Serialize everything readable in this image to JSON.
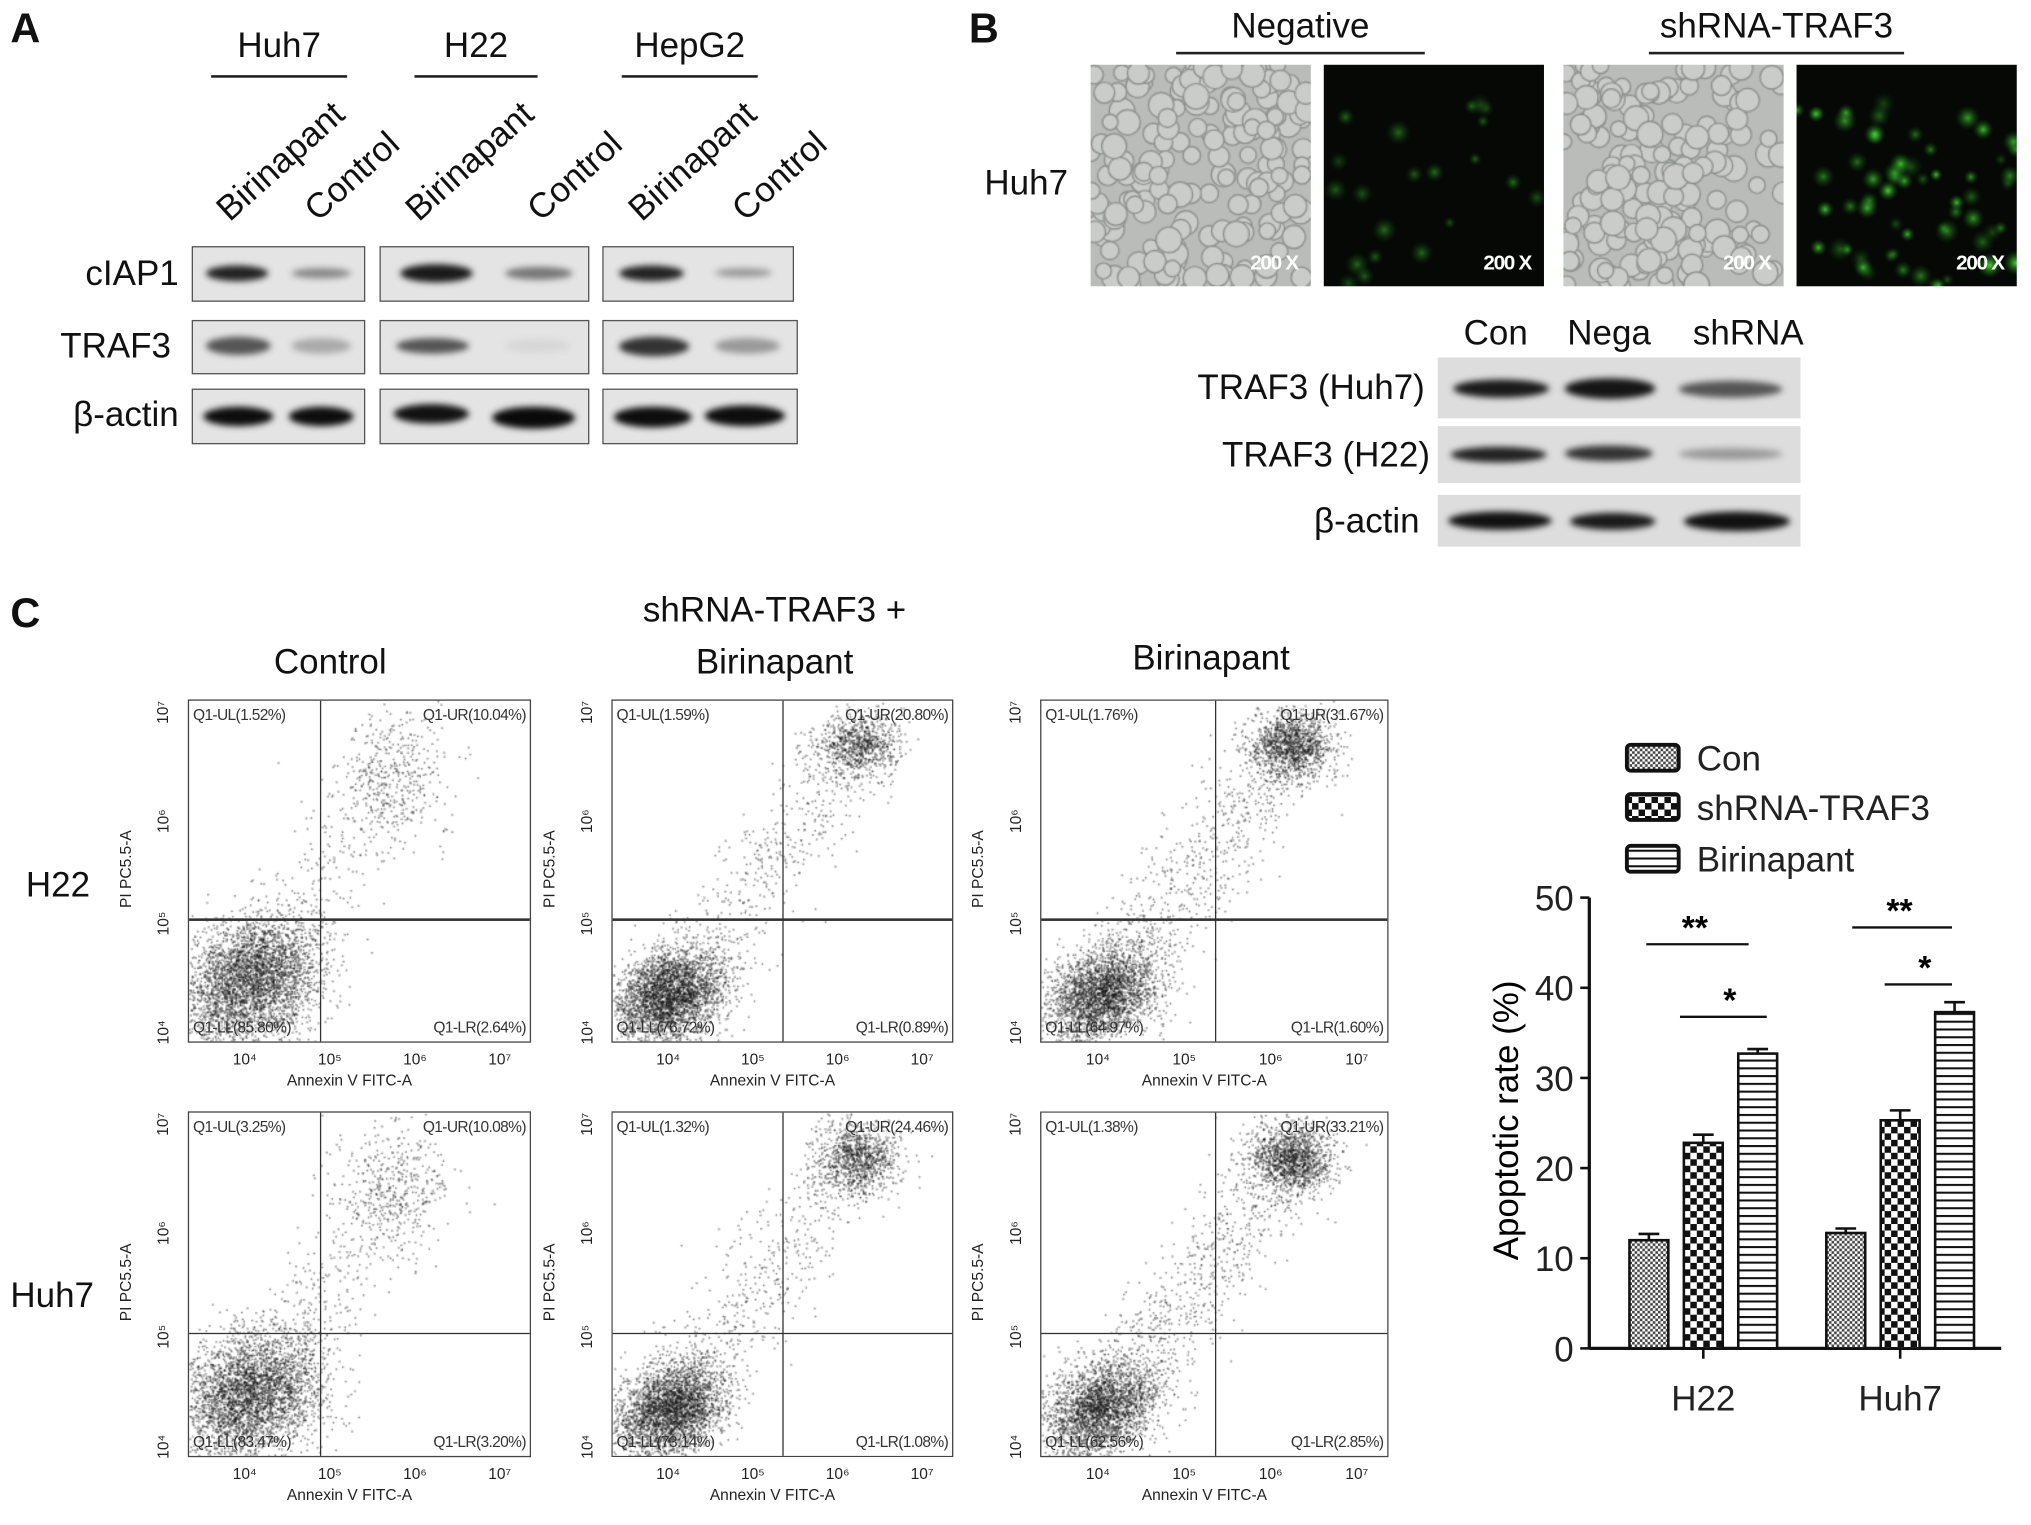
{
  "panel_a": {
    "letter": "A",
    "cell_lines": [
      "Huh7",
      "H22",
      "HepG2"
    ],
    "lanes": [
      "Birinapant",
      "Control",
      "Birinapant",
      "Control",
      "Birinapant",
      "Control"
    ],
    "rows": [
      "cIAP1",
      "TRAF3",
      "β-actin"
    ]
  },
  "panel_b": {
    "letter": "B",
    "groups": [
      "Negative",
      "shRNA-TRAF3"
    ],
    "row_label": "Huh7",
    "magnification": "200 X",
    "blot_lanes": [
      "Con",
      "Nega",
      "shRNA"
    ],
    "blot_rows": [
      "TRAF3 (Huh7)",
      "TRAF3 (H22)",
      "β-actin"
    ]
  },
  "panel_c": {
    "letter": "C",
    "columns": [
      {
        "line1": "Control",
        "line2": ""
      },
      {
        "line1": "shRNA-TRAF3 +",
        "line2": "Birinapant"
      },
      {
        "line1": "Birinapant",
        "line2": ""
      }
    ],
    "rows": [
      "H22",
      "Huh7"
    ],
    "x_axis_label": "Annexin V FITC-A",
    "y_axis_label": "PI PC5.5-A",
    "x_ticks": [
      "10⁴",
      "10⁵",
      "10⁶",
      "10⁷"
    ],
    "y_ticks": [
      "10⁴",
      "10⁵",
      "10⁶",
      "10⁷"
    ],
    "flow_plots": [
      [
        {
          "UL": "Q1-UL(1.52%)",
          "UR": "Q1-UR(10.04%)",
          "LL": "Q1-LL(85.80%)",
          "LR": "Q1-LR(2.64%)"
        },
        {
          "UL": "Q1-UL(1.59%)",
          "UR": "Q1-UR(20.80%)",
          "LL": "Q1-LL(76.72%)",
          "LR": "Q1-LR(0.89%)"
        },
        {
          "UL": "Q1-UL(1.76%)",
          "UR": "Q1-UR(31.67%)",
          "LL": "Q1-LL(64.97%)",
          "LR": "Q1-LR(1.60%)"
        }
      ],
      [
        {
          "UL": "Q1-UL(3.25%)",
          "UR": "Q1-UR(10.08%)",
          "LL": "Q1-LL(83.47%)",
          "LR": "Q1-LR(3.20%)"
        },
        {
          "UL": "Q1-UL(1.32%)",
          "UR": "Q1-UR(24.46%)",
          "LL": "Q1-LL(73.14%)",
          "LR": "Q1-LR(1.08%)"
        },
        {
          "UL": "Q1-UL(1.38%)",
          "UR": "Q1-UR(33.21%)",
          "LL": "Q1-LL(62.56%)",
          "LR": "Q1-LR(2.85%)"
        }
      ]
    ]
  },
  "chart_data": {
    "type": "bar",
    "categories": [
      "H22",
      "Huh7"
    ],
    "series": [
      {
        "name": "Con",
        "values": [
          12.0,
          12.8
        ],
        "errors": [
          0.7,
          0.5
        ],
        "pattern": "fine-check"
      },
      {
        "name": "shRNA-TRAF3",
        "values": [
          22.8,
          25.3
        ],
        "errors": [
          0.9,
          1.1
        ],
        "pattern": "checker"
      },
      {
        "name": "Birinapant",
        "values": [
          32.7,
          37.3
        ],
        "errors": [
          0.5,
          1.1
        ],
        "pattern": "horizontal-stripes"
      }
    ],
    "ylabel": "Apoptotic rate (%)",
    "xlabel": "",
    "ylim": [
      0,
      50
    ],
    "yticks": [
      "0",
      "10",
      "20",
      "30",
      "40",
      "50"
    ],
    "legend": "top",
    "significance": [
      {
        "category": "H22",
        "between": [
          "Con",
          "Birinapant"
        ],
        "label": "**"
      },
      {
        "category": "H22",
        "between": [
          "shRNA-TRAF3",
          "Birinapant"
        ],
        "label": "*"
      },
      {
        "category": "Huh7",
        "between": [
          "Con",
          "Birinapant"
        ],
        "label": "**"
      },
      {
        "category": "Huh7",
        "between": [
          "shRNA-TRAF3",
          "Birinapant"
        ],
        "label": "*"
      }
    ]
  }
}
